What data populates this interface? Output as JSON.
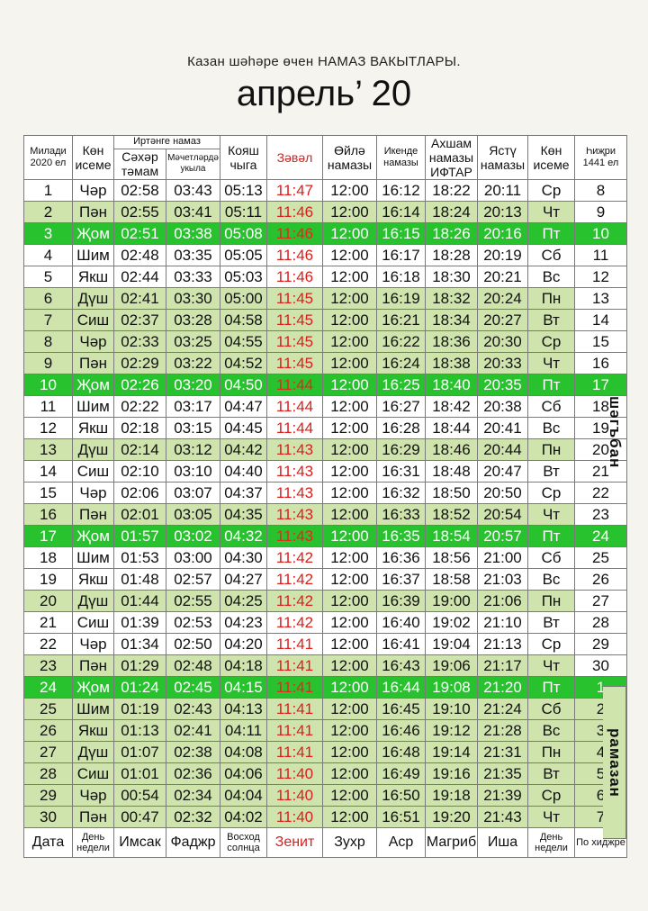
{
  "header": {
    "subtitle": "Казан шәһәре өчен НАМАЗ ВАКЫТЛАРЫ.",
    "title": "апрель’ 20"
  },
  "columns": {
    "miladi": "Милади 2020 ел",
    "day_name": "Көн исеме",
    "morning_group": "Иртәнге намаз",
    "sahar": "Сәхәр тәмам",
    "mosque": "Мәчетләрдә укыла",
    "sunrise": "Кояш чыга",
    "zaval": "Зәвәл",
    "oila": "Өйлә намазы",
    "ikende": "Икенде намазы",
    "akhsham": "Ахшам намазы ИФТАР",
    "yastu": "Ястү намазы",
    "day_name2": "Көн исеме",
    "hijri": "Һиҗри 1441 ел"
  },
  "side": {
    "shaban": "шәгъбан",
    "ramadan": "рамазан"
  },
  "rows": [
    {
      "d": "1",
      "wd": "Чәр",
      "s": "02:58",
      "m": "03:43",
      "r": "05:13",
      "z": "11:47",
      "o": "12:00",
      "i": "16:12",
      "a": "18:22",
      "y": "20:11",
      "ws": "Ср",
      "h": "8",
      "t": "white"
    },
    {
      "d": "2",
      "wd": "Пән",
      "s": "02:55",
      "m": "03:41",
      "r": "05:11",
      "z": "11:46",
      "o": "12:00",
      "i": "16:14",
      "a": "18:24",
      "y": "20:13",
      "ws": "Чт",
      "h": "9",
      "t": "light"
    },
    {
      "d": "3",
      "wd": "Җом",
      "s": "02:51",
      "m": "03:38",
      "r": "05:08",
      "z": "11:46",
      "o": "12:00",
      "i": "16:15",
      "a": "18:26",
      "y": "20:16",
      "ws": "Пт",
      "h": "10",
      "t": "fri"
    },
    {
      "d": "4",
      "wd": "Шим",
      "s": "02:48",
      "m": "03:35",
      "r": "05:05",
      "z": "11:46",
      "o": "12:00",
      "i": "16:17",
      "a": "18:28",
      "y": "20:19",
      "ws": "Сб",
      "h": "11",
      "t": "white"
    },
    {
      "d": "5",
      "wd": "Якш",
      "s": "02:44",
      "m": "03:33",
      "r": "05:03",
      "z": "11:46",
      "o": "12:00",
      "i": "16:18",
      "a": "18:30",
      "y": "20:21",
      "ws": "Вс",
      "h": "12",
      "t": "white"
    },
    {
      "d": "6",
      "wd": "Дүш",
      "s": "02:41",
      "m": "03:30",
      "r": "05:00",
      "z": "11:45",
      "o": "12:00",
      "i": "16:19",
      "a": "18:32",
      "y": "20:24",
      "ws": "Пн",
      "h": "13",
      "t": "light"
    },
    {
      "d": "7",
      "wd": "Сиш",
      "s": "02:37",
      "m": "03:28",
      "r": "04:58",
      "z": "11:45",
      "o": "12:00",
      "i": "16:21",
      "a": "18:34",
      "y": "20:27",
      "ws": "Вт",
      "h": "14",
      "t": "light"
    },
    {
      "d": "8",
      "wd": "Чәр",
      "s": "02:33",
      "m": "03:25",
      "r": "04:55",
      "z": "11:45",
      "o": "12:00",
      "i": "16:22",
      "a": "18:36",
      "y": "20:30",
      "ws": "Ср",
      "h": "15",
      "t": "light"
    },
    {
      "d": "9",
      "wd": "Пән",
      "s": "02:29",
      "m": "03:22",
      "r": "04:52",
      "z": "11:45",
      "o": "12:00",
      "i": "16:24",
      "a": "18:38",
      "y": "20:33",
      "ws": "Чт",
      "h": "16",
      "t": "light"
    },
    {
      "d": "10",
      "wd": "Җом",
      "s": "02:26",
      "m": "03:20",
      "r": "04:50",
      "z": "11:44",
      "o": "12:00",
      "i": "16:25",
      "a": "18:40",
      "y": "20:35",
      "ws": "Пт",
      "h": "17",
      "t": "fri"
    },
    {
      "d": "11",
      "wd": "Шим",
      "s": "02:22",
      "m": "03:17",
      "r": "04:47",
      "z": "11:44",
      "o": "12:00",
      "i": "16:27",
      "a": "18:42",
      "y": "20:38",
      "ws": "Сб",
      "h": "18",
      "t": "white"
    },
    {
      "d": "12",
      "wd": "Якш",
      "s": "02:18",
      "m": "03:15",
      "r": "04:45",
      "z": "11:44",
      "o": "12:00",
      "i": "16:28",
      "a": "18:44",
      "y": "20:41",
      "ws": "Вс",
      "h": "19",
      "t": "white"
    },
    {
      "d": "13",
      "wd": "Дүш",
      "s": "02:14",
      "m": "03:12",
      "r": "04:42",
      "z": "11:43",
      "o": "12:00",
      "i": "16:29",
      "a": "18:46",
      "y": "20:44",
      "ws": "Пн",
      "h": "20",
      "t": "light"
    },
    {
      "d": "14",
      "wd": "Сиш",
      "s": "02:10",
      "m": "03:10",
      "r": "04:40",
      "z": "11:43",
      "o": "12:00",
      "i": "16:31",
      "a": "18:48",
      "y": "20:47",
      "ws": "Вт",
      "h": "21",
      "t": "white"
    },
    {
      "d": "15",
      "wd": "Чәр",
      "s": "02:06",
      "m": "03:07",
      "r": "04:37",
      "z": "11:43",
      "o": "12:00",
      "i": "16:32",
      "a": "18:50",
      "y": "20:50",
      "ws": "Ср",
      "h": "22",
      "t": "white"
    },
    {
      "d": "16",
      "wd": "Пән",
      "s": "02:01",
      "m": "03:05",
      "r": "04:35",
      "z": "11:43",
      "o": "12:00",
      "i": "16:33",
      "a": "18:52",
      "y": "20:54",
      "ws": "Чт",
      "h": "23",
      "t": "light"
    },
    {
      "d": "17",
      "wd": "Җом",
      "s": "01:57",
      "m": "03:02",
      "r": "04:32",
      "z": "11:43",
      "o": "12:00",
      "i": "16:35",
      "a": "18:54",
      "y": "20:57",
      "ws": "Пт",
      "h": "24",
      "t": "fri"
    },
    {
      "d": "18",
      "wd": "Шим",
      "s": "01:53",
      "m": "03:00",
      "r": "04:30",
      "z": "11:42",
      "o": "12:00",
      "i": "16:36",
      "a": "18:56",
      "y": "21:00",
      "ws": "Сб",
      "h": "25",
      "t": "white"
    },
    {
      "d": "19",
      "wd": "Якш",
      "s": "01:48",
      "m": "02:57",
      "r": "04:27",
      "z": "11:42",
      "o": "12:00",
      "i": "16:37",
      "a": "18:58",
      "y": "21:03",
      "ws": "Вс",
      "h": "26",
      "t": "white"
    },
    {
      "d": "20",
      "wd": "Дүш",
      "s": "01:44",
      "m": "02:55",
      "r": "04:25",
      "z": "11:42",
      "o": "12:00",
      "i": "16:39",
      "a": "19:00",
      "y": "21:06",
      "ws": "Пн",
      "h": "27",
      "t": "light"
    },
    {
      "d": "21",
      "wd": "Сиш",
      "s": "01:39",
      "m": "02:53",
      "r": "04:23",
      "z": "11:42",
      "o": "12:00",
      "i": "16:40",
      "a": "19:02",
      "y": "21:10",
      "ws": "Вт",
      "h": "28",
      "t": "white"
    },
    {
      "d": "22",
      "wd": "Чәр",
      "s": "01:34",
      "m": "02:50",
      "r": "04:20",
      "z": "11:41",
      "o": "12:00",
      "i": "16:41",
      "a": "19:04",
      "y": "21:13",
      "ws": "Ср",
      "h": "29",
      "t": "white"
    },
    {
      "d": "23",
      "wd": "Пән",
      "s": "01:29",
      "m": "02:48",
      "r": "04:18",
      "z": "11:41",
      "o": "12:00",
      "i": "16:43",
      "a": "19:06",
      "y": "21:17",
      "ws": "Чт",
      "h": "30",
      "t": "light"
    },
    {
      "d": "24",
      "wd": "Җом",
      "s": "01:24",
      "m": "02:45",
      "r": "04:15",
      "z": "11:41",
      "o": "12:00",
      "i": "16:44",
      "a": "19:08",
      "y": "21:20",
      "ws": "Пт",
      "h": "1",
      "t": "fri"
    },
    {
      "d": "25",
      "wd": "Шим",
      "s": "01:19",
      "m": "02:43",
      "r": "04:13",
      "z": "11:41",
      "o": "12:00",
      "i": "16:45",
      "a": "19:10",
      "y": "21:24",
      "ws": "Сб",
      "h": "2",
      "t": "light"
    },
    {
      "d": "26",
      "wd": "Якш",
      "s": "01:13",
      "m": "02:41",
      "r": "04:11",
      "z": "11:41",
      "o": "12:00",
      "i": "16:46",
      "a": "19:12",
      "y": "21:28",
      "ws": "Вс",
      "h": "3",
      "t": "light"
    },
    {
      "d": "27",
      "wd": "Дүш",
      "s": "01:07",
      "m": "02:38",
      "r": "04:08",
      "z": "11:41",
      "o": "12:00",
      "i": "16:48",
      "a": "19:14",
      "y": "21:31",
      "ws": "Пн",
      "h": "4",
      "t": "light"
    },
    {
      "d": "28",
      "wd": "Сиш",
      "s": "01:01",
      "m": "02:36",
      "r": "04:06",
      "z": "11:40",
      "o": "12:00",
      "i": "16:49",
      "a": "19:16",
      "y": "21:35",
      "ws": "Вт",
      "h": "5",
      "t": "light"
    },
    {
      "d": "29",
      "wd": "Чәр",
      "s": "00:54",
      "m": "02:34",
      "r": "04:04",
      "z": "11:40",
      "o": "12:00",
      "i": "16:50",
      "a": "19:18",
      "y": "21:39",
      "ws": "Ср",
      "h": "6",
      "t": "light"
    },
    {
      "d": "30",
      "wd": "Пән",
      "s": "00:47",
      "m": "02:32",
      "r": "04:02",
      "z": "11:40",
      "o": "12:00",
      "i": "16:51",
      "a": "19:20",
      "y": "21:43",
      "ws": "Чт",
      "h": "7",
      "t": "light"
    }
  ],
  "footer": {
    "date": "Дата",
    "day": "День недели",
    "imsak": "Имсак",
    "fajr": "Фаджр",
    "sunrise": "Восход солнца",
    "zenith": "Зенит",
    "zuhr": "Зухр",
    "asr": "Аср",
    "maghrib": "Магриб",
    "isha": "Иша",
    "day2": "День недели",
    "hijri": "По хиджре"
  },
  "colors": {
    "friday": "#27c22e",
    "light": "#cfe3ad",
    "zenith": "#d8201c"
  }
}
